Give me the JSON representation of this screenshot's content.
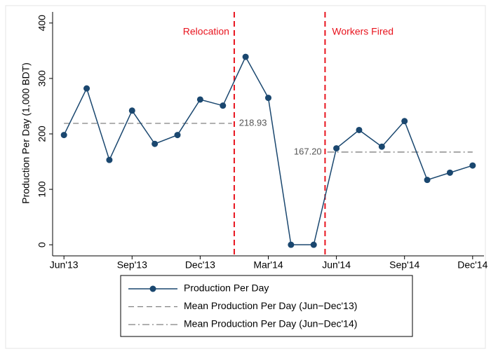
{
  "chart_data": {
    "type": "line",
    "ylabel": "Production Per Day (1,000 BDT)",
    "categories": [
      "Jun'13",
      null,
      null,
      "Sep'13",
      null,
      null,
      "Dec'13",
      null,
      null,
      "Mar'14",
      null,
      null,
      "Jun'14",
      null,
      null,
      "Sep'14",
      null,
      null,
      "Dec'14"
    ],
    "ylim": [
      -20,
      420
    ],
    "yticks": [
      0,
      100,
      200,
      300,
      400
    ],
    "series": [
      {
        "name": "Production Per Day",
        "color": "#1a476f",
        "values": [
          198,
          282,
          153,
          242,
          182,
          198,
          262,
          251,
          339,
          265,
          0,
          0,
          174,
          207,
          177,
          223,
          117,
          130,
          143
        ]
      }
    ],
    "mean_lines": [
      {
        "name": "Mean Production Per Day (Jun−Dec'13)",
        "color": "#808080",
        "dash": "8 5",
        "value": 218.93,
        "value_label": "218.93",
        "x_range": [
          0,
          7.4
        ]
      },
      {
        "name": "Mean Production Per Day (Jun−Dec'14)",
        "color": "#808080",
        "dash": "10 4 2 4",
        "value": 167.2,
        "value_label": "167.20",
        "x_range": [
          11.6,
          18
        ]
      }
    ],
    "events": [
      {
        "label": "Relocation",
        "x": 7.5,
        "color": "#e8141e"
      },
      {
        "label": "Workers Fired",
        "x": 11.5,
        "color": "#e8141e"
      }
    ]
  }
}
